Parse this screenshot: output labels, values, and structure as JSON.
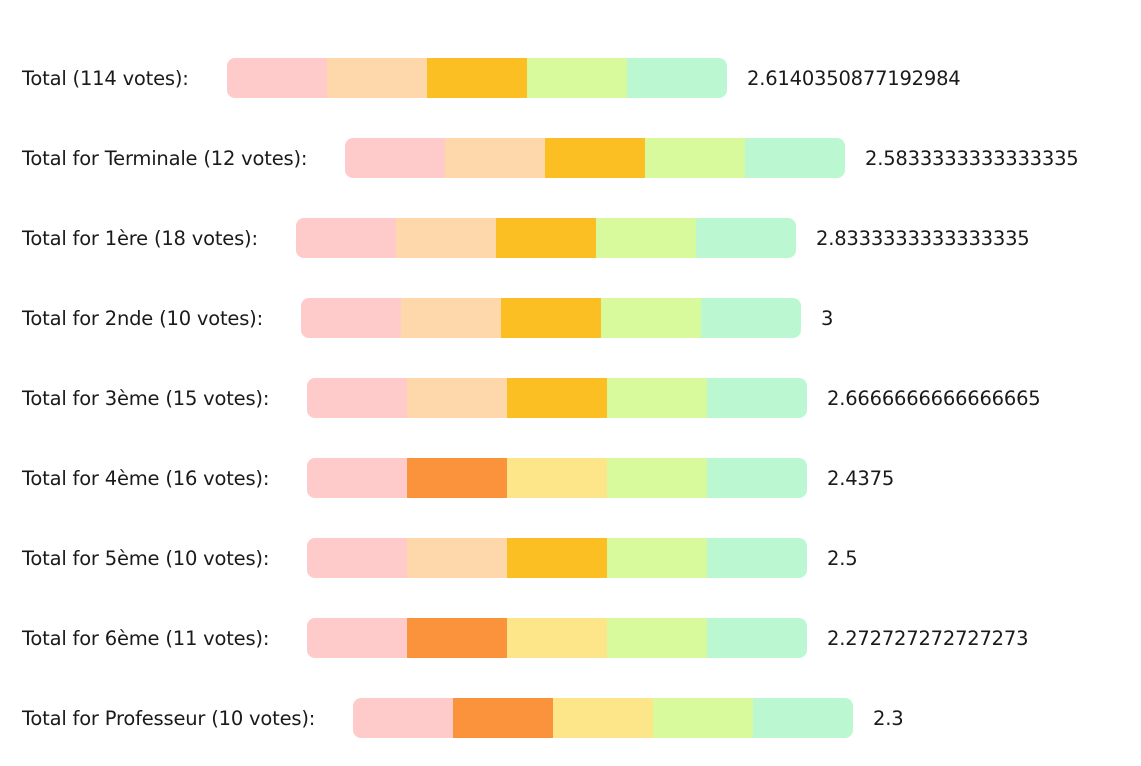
{
  "colors": {
    "pink": "#fecaca",
    "peach": "#fed7aa",
    "amber": "#fbbf24",
    "orange": "#fb923c",
    "pale_yellow": "#fde68a",
    "lime": "#d9f99d",
    "mint": "#bbf7d0"
  },
  "rows": [
    {
      "label": "Total (114 votes):",
      "value": "2.6140350877192984",
      "segments": [
        "pink",
        "peach",
        "amber",
        "lime",
        "mint"
      ]
    },
    {
      "label": "Total for Terminale (12 votes):",
      "value": "2.5833333333333335",
      "segments": [
        "pink",
        "peach",
        "amber",
        "lime",
        "mint"
      ]
    },
    {
      "label": "Total for 1ère (18 votes):",
      "value": "2.8333333333333335",
      "segments": [
        "pink",
        "peach",
        "amber",
        "lime",
        "mint"
      ]
    },
    {
      "label": "Total for 2nde (10 votes):",
      "value": "3",
      "segments": [
        "pink",
        "peach",
        "amber",
        "lime",
        "mint"
      ]
    },
    {
      "label": "Total for 3ème (15 votes):",
      "value": "2.6666666666666665",
      "segments": [
        "pink",
        "peach",
        "amber",
        "lime",
        "mint"
      ]
    },
    {
      "label": "Total for 4ème (16 votes):",
      "value": "2.4375",
      "segments": [
        "pink",
        "orange",
        "pale_yellow",
        "lime",
        "mint"
      ]
    },
    {
      "label": "Total for 5ème (10 votes):",
      "value": "2.5",
      "segments": [
        "pink",
        "peach",
        "amber",
        "lime",
        "mint"
      ]
    },
    {
      "label": "Total for 6ème (11 votes):",
      "value": "2.272727272727273",
      "segments": [
        "pink",
        "orange",
        "pale_yellow",
        "lime",
        "mint"
      ]
    },
    {
      "label": "Total for Professeur (10 votes):",
      "value": "2.3",
      "segments": [
        "pink",
        "orange",
        "pale_yellow",
        "lime",
        "mint"
      ]
    }
  ]
}
